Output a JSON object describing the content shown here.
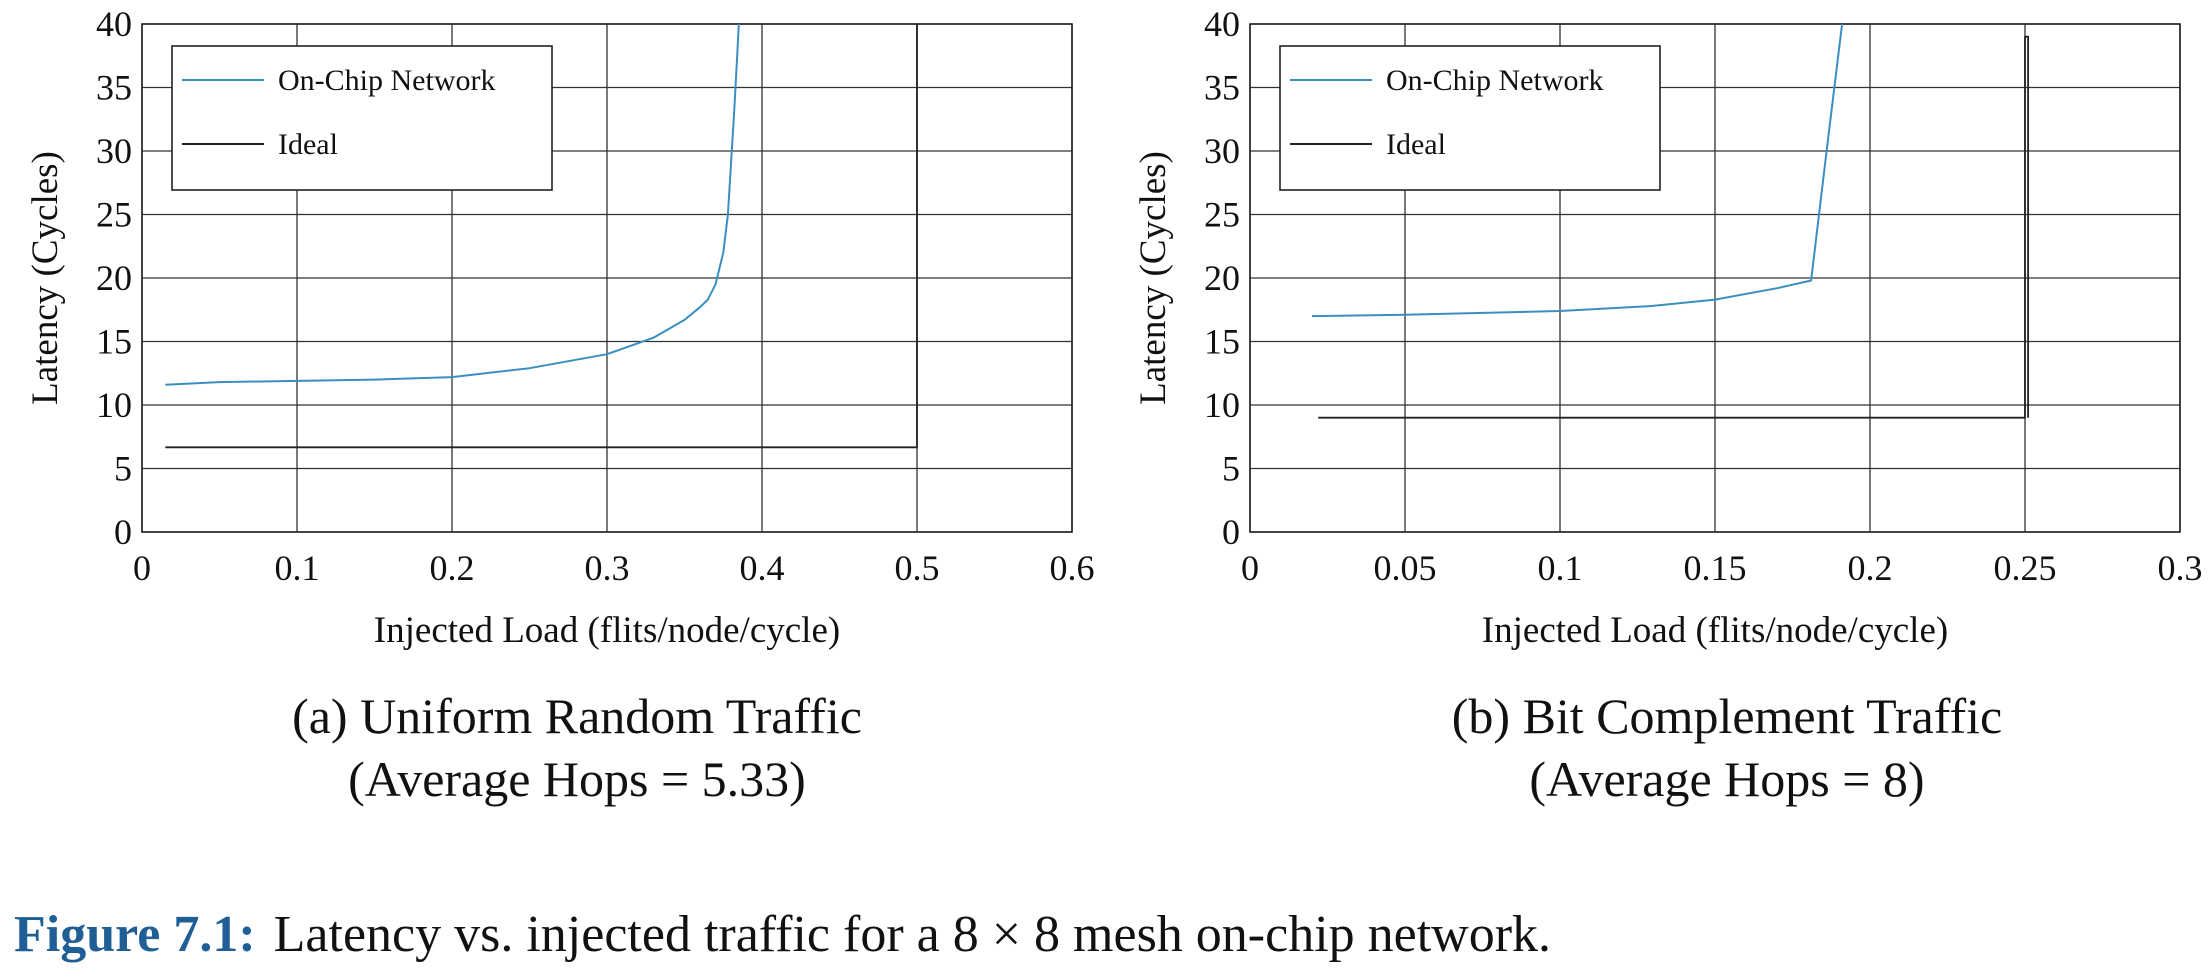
{
  "figure": {
    "number": "Figure 7.1:",
    "text": "Latency vs. injected traffic for a 8 × 8 mesh on-chip network."
  },
  "chart_data": [
    {
      "type": "line",
      "caption_line1": "(a) Uniform Random Traffic",
      "caption_line2": "(Average Hops = 5.33)",
      "xlabel": "Injected Load (flits/node/cycle)",
      "ylabel": "Latency (Cycles)",
      "xlim": [
        0,
        0.6
      ],
      "ylim": [
        0,
        40
      ],
      "xticks": [
        0,
        0.1,
        0.2,
        0.3,
        0.4,
        0.5,
        0.6
      ],
      "xtick_labels": [
        "0",
        "0.1",
        "0.2",
        "0.3",
        "0.4",
        "0.5",
        "0.6"
      ],
      "yticks": [
        0,
        5,
        10,
        15,
        20,
        25,
        30,
        35,
        40
      ],
      "ytick_labels": [
        "0",
        "5",
        "10",
        "15",
        "20",
        "25",
        "30",
        "35",
        "40"
      ],
      "grid": true,
      "legend_position": "top-left",
      "series": [
        {
          "name": "On-Chip Network",
          "color": "#3a8fc0",
          "x": [
            0.015,
            0.05,
            0.1,
            0.15,
            0.2,
            0.25,
            0.3,
            0.33,
            0.35,
            0.36,
            0.365,
            0.37,
            0.375,
            0.378,
            0.38,
            0.382,
            0.384,
            0.385
          ],
          "y": [
            11.6,
            11.8,
            11.9,
            12.0,
            12.2,
            12.9,
            14.0,
            15.3,
            16.7,
            17.7,
            18.3,
            19.5,
            22.0,
            25.0,
            29.0,
            33.0,
            37.5,
            40.0
          ]
        },
        {
          "name": "Ideal",
          "color": "#222222",
          "x": [
            0.015,
            0.5,
            0.5
          ],
          "y": [
            6.67,
            6.67,
            40.0
          ]
        }
      ]
    },
    {
      "type": "line",
      "caption_line1": "(b) Bit Complement Traffic",
      "caption_line2": "(Average Hops = 8)",
      "xlabel": "Injected Load (flits/node/cycle)",
      "ylabel": "Latency (Cycles)",
      "xlim": [
        0,
        0.3
      ],
      "ylim": [
        0,
        40
      ],
      "xticks": [
        0,
        0.05,
        0.1,
        0.15,
        0.2,
        0.25,
        0.3
      ],
      "xtick_labels": [
        "0",
        "0.05",
        "0.1",
        "0.15",
        "0.2",
        "0.25",
        "0.3"
      ],
      "yticks": [
        0,
        5,
        10,
        15,
        20,
        25,
        30,
        35,
        40
      ],
      "ytick_labels": [
        "0",
        "5",
        "10",
        "15",
        "20",
        "25",
        "30",
        "35",
        "40"
      ],
      "grid": true,
      "legend_position": "top-left",
      "series": [
        {
          "name": "On-Chip Network",
          "color": "#3a8fc0",
          "x": [
            0.02,
            0.05,
            0.1,
            0.13,
            0.15,
            0.17,
            0.181,
            0.186,
            0.191
          ],
          "y": [
            17.0,
            17.1,
            17.4,
            17.8,
            18.3,
            19.2,
            19.8,
            30.0,
            40.0
          ]
        },
        {
          "name": "Ideal",
          "color": "#222222",
          "x": [
            0.022,
            0.25,
            0.25,
            0.251,
            0.251
          ],
          "y": [
            9.0,
            9.0,
            39.0,
            39.0,
            9.0
          ]
        }
      ]
    }
  ]
}
